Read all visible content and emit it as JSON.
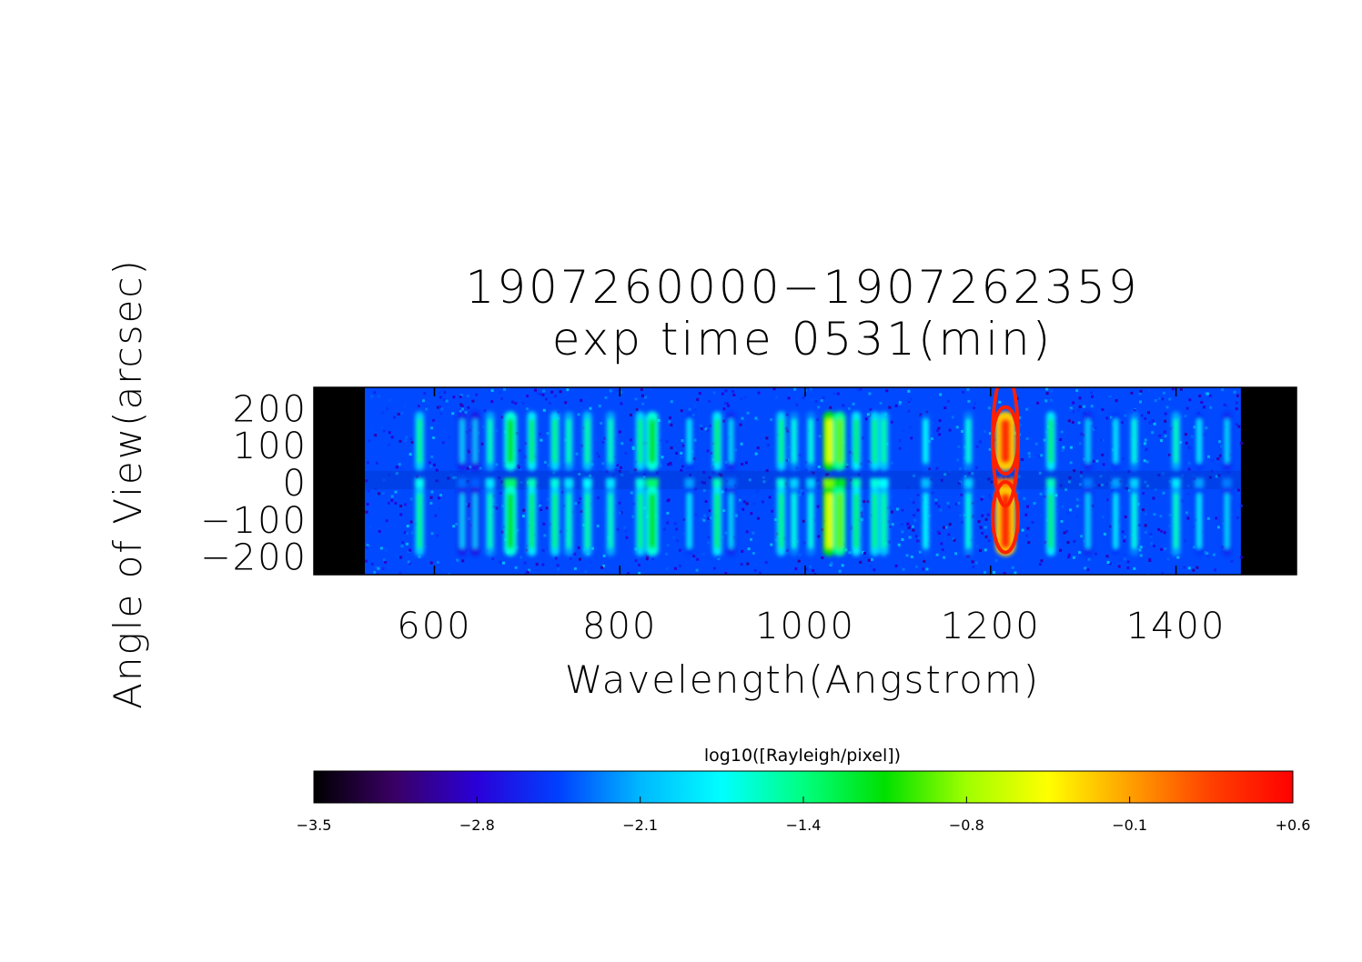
{
  "chart_data": {
    "type": "heatmap",
    "title": "1907260000−1907262359",
    "subtitle": "exp time 0531(min)",
    "xlabel": "Wavelength(Angstrom)",
    "ylabel": "Angle of View(arcsec)",
    "xlim": [
      470,
      1530
    ],
    "ylim": [
      -250,
      255
    ],
    "data_x_range": [
      525,
      1470
    ],
    "x_ticks": [
      {
        "value": 600,
        "label": "600"
      },
      {
        "value": 800,
        "label": "800"
      },
      {
        "value": 1000,
        "label": "1000"
      },
      {
        "value": 1200,
        "label": "1200"
      },
      {
        "value": 1400,
        "label": "1400"
      }
    ],
    "y_ticks": [
      {
        "value": 200,
        "label": "200"
      },
      {
        "value": 100,
        "label": "100"
      },
      {
        "value": 0,
        "label": "0"
      },
      {
        "value": -100,
        "label": "−100"
      },
      {
        "value": -200,
        "label": "−200"
      }
    ],
    "background_level": -2.45,
    "emission_lines": [
      {
        "wavelength": 584,
        "peak": -1.45
      },
      {
        "wavelength": 630,
        "peak": -2.05
      },
      {
        "wavelength": 644,
        "peak": -2.1
      },
      {
        "wavelength": 660,
        "peak": -1.6
      },
      {
        "wavelength": 682,
        "peak": -1.1
      },
      {
        "wavelength": 705,
        "peak": -1.3
      },
      {
        "wavelength": 730,
        "peak": -1.4
      },
      {
        "wavelength": 745,
        "peak": -1.6
      },
      {
        "wavelength": 765,
        "peak": -1.5
      },
      {
        "wavelength": 790,
        "peak": -1.6
      },
      {
        "wavelength": 822,
        "peak": -1.4
      },
      {
        "wavelength": 835,
        "peak": -1.1
      },
      {
        "wavelength": 875,
        "peak": -1.9
      },
      {
        "wavelength": 905,
        "peak": -1.3
      },
      {
        "wavelength": 920,
        "peak": -2.0
      },
      {
        "wavelength": 974,
        "peak": -1.4
      },
      {
        "wavelength": 988,
        "peak": -1.7
      },
      {
        "wavelength": 1006,
        "peak": -1.7
      },
      {
        "wavelength": 1026,
        "peak": -0.55
      },
      {
        "wavelength": 1037,
        "peak": -0.9
      },
      {
        "wavelength": 1055,
        "peak": -1.3
      },
      {
        "wavelength": 1075,
        "peak": -1.4
      },
      {
        "wavelength": 1085,
        "peak": -1.5
      },
      {
        "wavelength": 1130,
        "peak": -1.8
      },
      {
        "wavelength": 1176,
        "peak": -1.7
      },
      {
        "wavelength": 1216,
        "peak": 0.35
      },
      {
        "wavelength": 1265,
        "peak": -1.3
      },
      {
        "wavelength": 1305,
        "peak": -2.0
      },
      {
        "wavelength": 1335,
        "peak": -1.9
      },
      {
        "wavelength": 1355,
        "peak": -1.7
      },
      {
        "wavelength": 1400,
        "peak": -1.6
      },
      {
        "wavelength": 1425,
        "peak": -1.9
      },
      {
        "wavelength": 1455,
        "peak": -2.0
      }
    ],
    "colorbar": {
      "label": "log10([Rayleigh/pixel])",
      "min": -3.5,
      "max": 0.6,
      "ticks": [
        "−3.5",
        "−2.8",
        "−2.1",
        "−1.4",
        "−0.8",
        "−0.1",
        "+0.6"
      ],
      "colormap": [
        "#000000",
        "#3a0066",
        "#2a00d8",
        "#0040ff",
        "#00b8ff",
        "#00ffff",
        "#00ff80",
        "#00e000",
        "#a0ff00",
        "#ffff00",
        "#ffa000",
        "#ff4000",
        "#ff0000"
      ]
    }
  }
}
